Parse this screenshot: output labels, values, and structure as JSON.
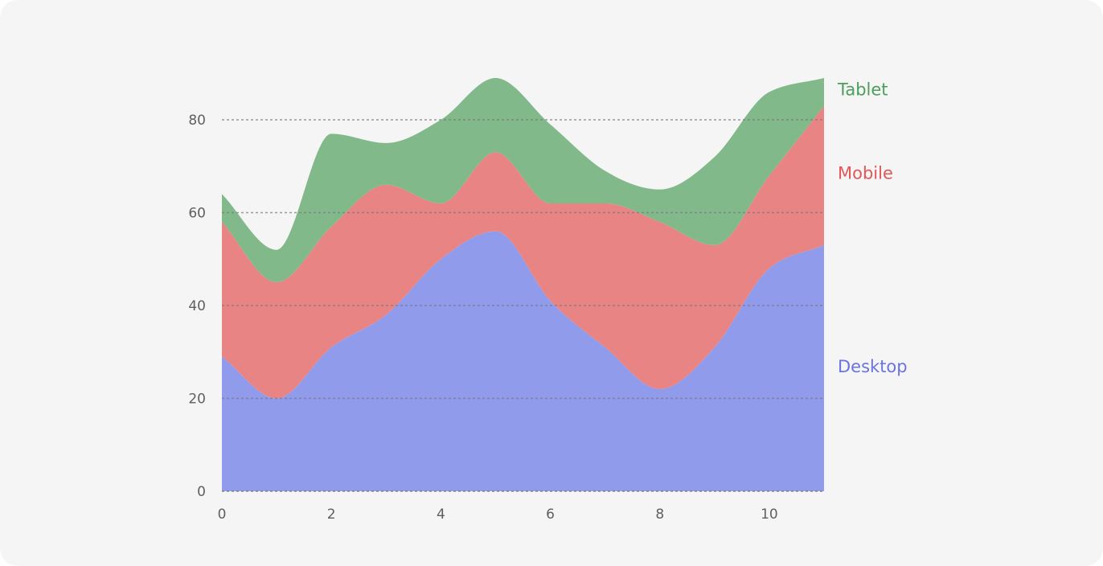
{
  "chart_data": {
    "type": "area",
    "stacked": true,
    "x": [
      0,
      1,
      2,
      3,
      4,
      5,
      6,
      7,
      8,
      9,
      10,
      11
    ],
    "series": [
      {
        "name": "Desktop",
        "color": "#919bec",
        "label_color": "#6a74e0",
        "values": [
          29,
          20,
          31,
          38,
          50,
          56,
          41,
          31,
          22,
          31,
          48,
          53
        ]
      },
      {
        "name": "Mobile",
        "color": "#e88484",
        "label_color": "#e05858",
        "values": [
          29,
          25,
          26,
          28,
          12,
          17,
          21,
          31,
          36,
          22,
          20,
          30
        ]
      },
      {
        "name": "Tablet",
        "color": "#82b98b",
        "label_color": "#4e9e5b",
        "values": [
          6,
          7,
          20,
          9,
          18,
          16,
          17,
          7,
          7,
          19,
          18,
          6
        ]
      }
    ],
    "xlim": [
      0,
      11
    ],
    "ylim": [
      0,
      90
    ],
    "x_ticks": [
      0,
      2,
      4,
      6,
      8,
      10
    ],
    "y_ticks": [
      0,
      20,
      40,
      60,
      80
    ],
    "grid": "horizontal dotted",
    "legend": "inline labels at right end of series",
    "title": "",
    "xlabel": "",
    "ylabel": ""
  }
}
